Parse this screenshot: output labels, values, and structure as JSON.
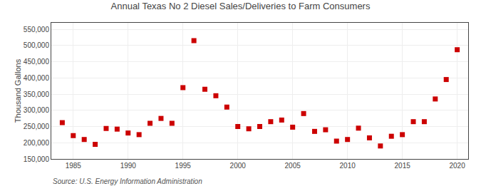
{
  "chart_data": {
    "type": "scatter",
    "title": "Annual Texas No 2 Diesel Sales/Deliveries to Farm Consumers",
    "ylabel": "Thousand Gallons",
    "source": "Source: U.S. Energy Information Administration",
    "color": "#CC0000",
    "marker": "square",
    "x": [
      1984,
      1985,
      1986,
      1987,
      1988,
      1989,
      1990,
      1991,
      1992,
      1993,
      1994,
      1995,
      1996,
      1997,
      1998,
      1999,
      2000,
      2001,
      2002,
      2003,
      2004,
      2005,
      2006,
      2007,
      2008,
      2009,
      2010,
      2011,
      2012,
      2013,
      2014,
      2015,
      2016,
      2017,
      2018,
      2019,
      2020
    ],
    "values": [
      262000,
      222000,
      210000,
      195000,
      244000,
      242000,
      230000,
      225000,
      260000,
      275000,
      260000,
      370000,
      515000,
      365000,
      345000,
      310000,
      250000,
      243000,
      250000,
      265000,
      270000,
      248000,
      290000,
      235000,
      240000,
      205000,
      210000,
      245000,
      215000,
      190000,
      220000,
      225000,
      265000,
      265000,
      335000,
      395000,
      487000
    ],
    "xlim": [
      1983,
      2021
    ],
    "xticks": [
      1985,
      1990,
      1995,
      2000,
      2005,
      2010,
      2015,
      2020
    ],
    "ylim": [
      150000,
      570000
    ],
    "yticks": [
      {
        "value": 150000,
        "label": "150,000"
      },
      {
        "value": 200000,
        "label": "200,000"
      },
      {
        "value": 250000,
        "label": "250,000"
      },
      {
        "value": 300000,
        "label": "300,000"
      },
      {
        "value": 350000,
        "label": "350,000"
      },
      {
        "value": 400000,
        "label": "400,000"
      },
      {
        "value": 450000,
        "label": "450,000"
      },
      {
        "value": 500000,
        "label": "500,000"
      },
      {
        "value": 550000,
        "label": "550,000"
      }
    ],
    "grid": true
  }
}
